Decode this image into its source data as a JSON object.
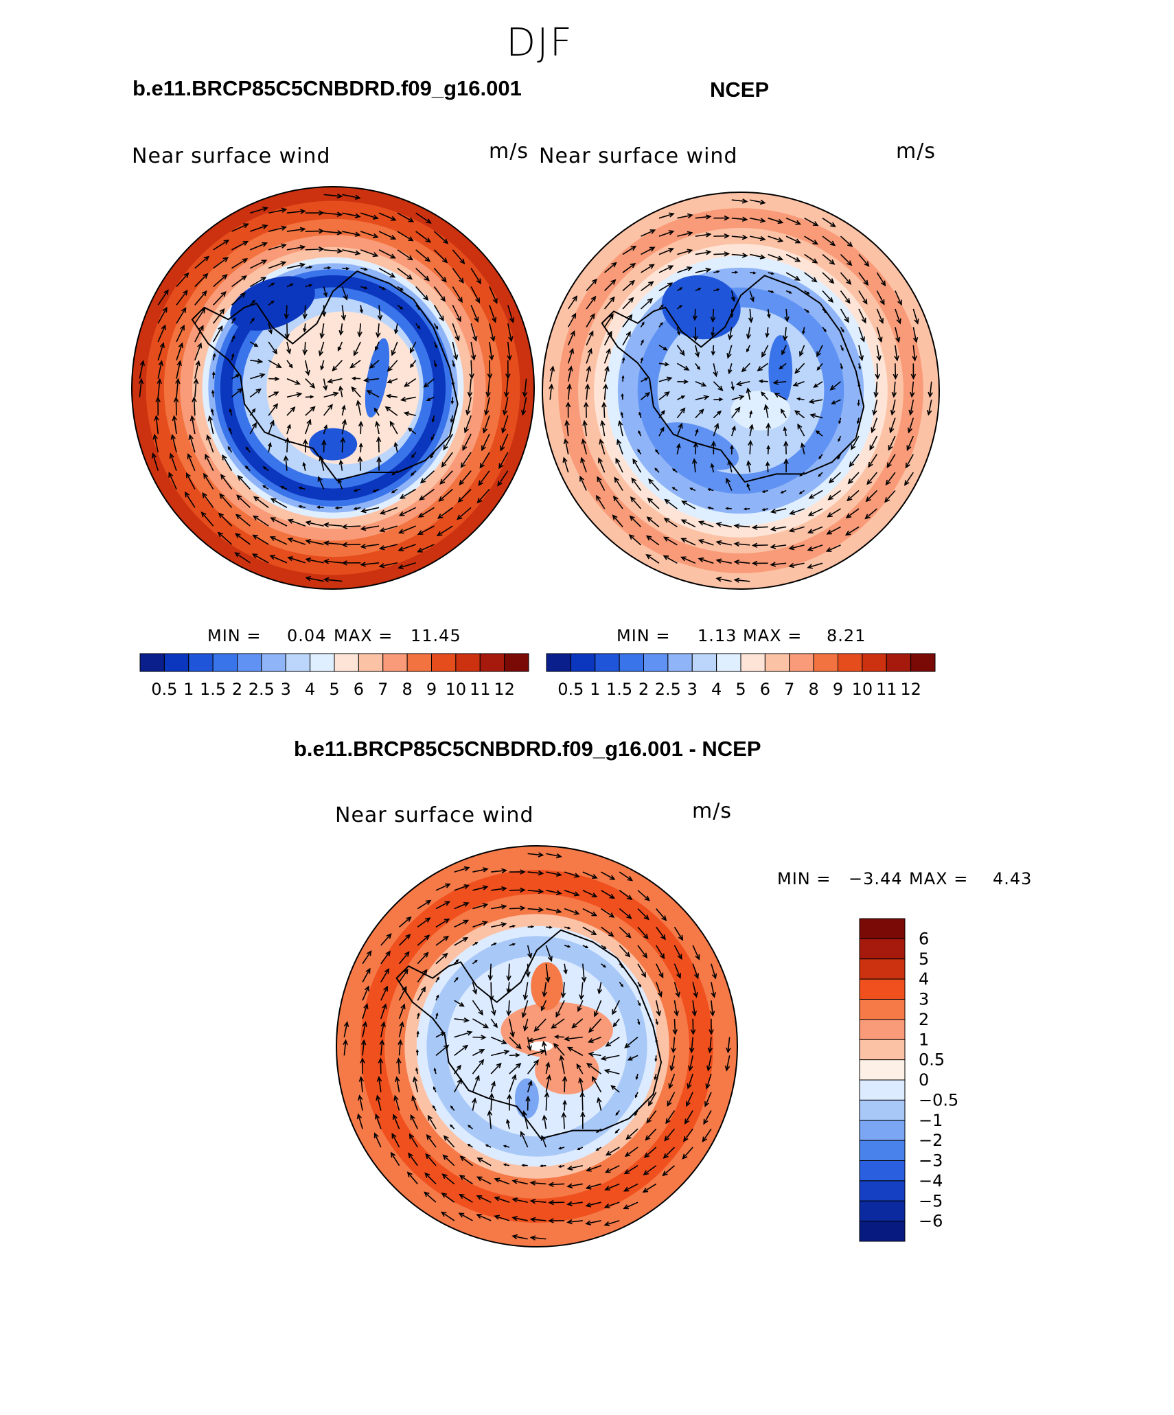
{
  "figure": {
    "title": "DJF"
  },
  "chart_data": [
    {
      "type": "heatmap",
      "panel": "top-left",
      "title": "b.e11.BRCP85C5CNBDRD.f09_g16.001",
      "variable": "Near surface wind",
      "units": "m/s",
      "min_label": "MIN =",
      "min_value": "0.04",
      "max_label": "MAX =",
      "max_value": "11.45",
      "colorbar": {
        "orientation": "horizontal",
        "tick_labels": [
          "0.5",
          "1",
          "1.5",
          "2",
          "2.5",
          "3",
          "4",
          "5",
          "6",
          "7",
          "8",
          "9",
          "10",
          "11",
          "12"
        ],
        "colors": [
          "#0a1e8c",
          "#0b36be",
          "#1f55d8",
          "#3a74ea",
          "#5f92f2",
          "#8fb4f7",
          "#bcd6fb",
          "#e0efff",
          "#fde4d6",
          "#fcc2a6",
          "#f99b78",
          "#f2733f",
          "#e64d1c",
          "#cc3210",
          "#a51a0c",
          "#7a0a06"
        ]
      },
      "projection": "south-polar stereographic",
      "pattern": "strong westerlies (9-12 m/s) ring at outer latitudes, weak winds (0.5-2 m/s) band around Antarctic coast"
    },
    {
      "type": "heatmap",
      "panel": "top-right",
      "title": "NCEP",
      "variable": "Near surface wind",
      "units": "m/s",
      "min_label": "MIN =",
      "min_value": "1.13",
      "max_label": "MAX =",
      "max_value": "8.21",
      "colorbar": {
        "orientation": "horizontal",
        "tick_labels": [
          "0.5",
          "1",
          "1.5",
          "2",
          "2.5",
          "3",
          "4",
          "5",
          "6",
          "7",
          "8",
          "9",
          "10",
          "11",
          "12"
        ],
        "colors": [
          "#0a1e8c",
          "#0b36be",
          "#1f55d8",
          "#3a74ea",
          "#5f92f2",
          "#8fb4f7",
          "#bcd6fb",
          "#e0efff",
          "#fde4d6",
          "#fcc2a6",
          "#f99b78",
          "#f2733f",
          "#e64d1c",
          "#cc3210",
          "#a51a0c",
          "#7a0a06"
        ]
      },
      "projection": "south-polar stereographic",
      "pattern": "moderate westerlies (6-8 m/s) at outer latitudes, 2-5 m/s over Antarctica"
    },
    {
      "type": "heatmap",
      "panel": "bottom",
      "title": "b.e11.BRCP85C5CNBDRD.f09_g16.001 - NCEP",
      "variable": "Near surface wind",
      "units": "m/s",
      "min_label": "MIN =",
      "min_value": "−3.44",
      "max_label": "MAX =",
      "max_value": "4.43",
      "colorbar": {
        "orientation": "vertical",
        "tick_labels": [
          "6",
          "5",
          "4",
          "3",
          "2",
          "1",
          "0.5",
          "0",
          "−0.5",
          "−1",
          "−2",
          "−3",
          "−4",
          "−5",
          "−6"
        ],
        "colors": [
          "#7a0a06",
          "#a51a0c",
          "#cc3210",
          "#f0501e",
          "#f57a48",
          "#f99b78",
          "#fcc2a6",
          "#fdf0e6",
          "#dcebff",
          "#a8c8f8",
          "#7aa6f3",
          "#4a82ec",
          "#2a60e0",
          "#1540c4",
          "#0b2aa0",
          "#061a80"
        ]
      },
      "projection": "south-polar stereographic",
      "pattern": "positive difference (2-4 m/s) ring at outer latitudes, mixed -3 to +3 near Antarctica"
    }
  ]
}
